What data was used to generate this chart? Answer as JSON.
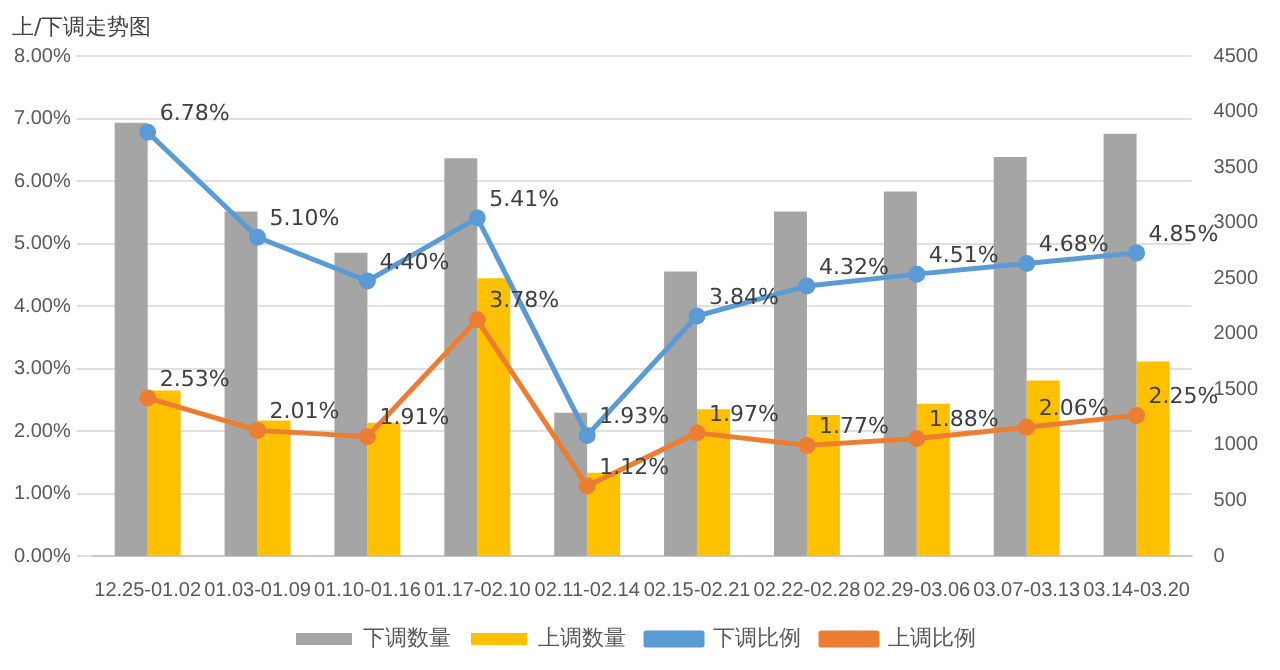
{
  "chart_data": {
    "type": "bar",
    "title": "上/下调走势图",
    "categories": [
      "12.25-01.02",
      "01.03-01.09",
      "01.10-01.16",
      "01.17-02.10",
      "02.11-02.14",
      "02.15-02.21",
      "02.22-02.28",
      "02.29-03.06",
      "03.07-03.13",
      "03.14-03.20"
    ],
    "series": [
      {
        "name": "下调数量",
        "axis": "y2",
        "color": "#a5a5a5",
        "values": [
          3900,
          3100,
          2730,
          3580,
          1290,
          2560,
          3100,
          3280,
          3590,
          3800
        ]
      },
      {
        "name": "上调数量",
        "axis": "y2",
        "color": "#ffc000",
        "values": [
          1490,
          1220,
          1200,
          2500,
          750,
          1320,
          1270,
          1370,
          1580,
          1750
        ]
      },
      {
        "name": "下调比例",
        "type": "line",
        "axis": "y",
        "color": "#5b9bd5",
        "values": [
          6.78,
          5.1,
          4.4,
          5.41,
          1.93,
          3.84,
          4.32,
          4.51,
          4.68,
          4.85
        ],
        "value_labels": [
          "6.78%",
          "5.10%",
          "4.40%",
          "5.41%",
          "1.93%",
          "3.84%",
          "4.32%",
          "4.51%",
          "4.68%",
          "4.85%"
        ]
      },
      {
        "name": "上调比例",
        "type": "line",
        "axis": "y",
        "color": "#ed7d31",
        "values": [
          2.53,
          2.01,
          1.91,
          3.78,
          1.12,
          1.97,
          1.77,
          1.88,
          2.06,
          2.25
        ],
        "value_labels": [
          "2.53%",
          "2.01%",
          "1.91%",
          "3.78%",
          "1.12%",
          "1.97%",
          "1.77%",
          "1.88%",
          "2.06%",
          "2.25%"
        ]
      }
    ],
    "ylim": [
      0,
      8
    ],
    "yticks": [
      {
        "value": 0,
        "label": "0.00%"
      },
      {
        "value": 1,
        "label": "1.00%"
      },
      {
        "value": 2,
        "label": "2.00%"
      },
      {
        "value": 3,
        "label": "3.00%"
      },
      {
        "value": 4,
        "label": "4.00%"
      },
      {
        "value": 5,
        "label": "5.00%"
      },
      {
        "value": 6,
        "label": "6.00%"
      },
      {
        "value": 7,
        "label": "7.00%"
      },
      {
        "value": 8,
        "label": "8.00%"
      }
    ],
    "y2lim": [
      0,
      4500
    ],
    "y2ticks": [
      0,
      500,
      1000,
      1500,
      2000,
      2500,
      3000,
      3500,
      4000,
      4500
    ],
    "grid": "y",
    "legend": "bottom",
    "marker": "circle",
    "line_style": "solid"
  }
}
